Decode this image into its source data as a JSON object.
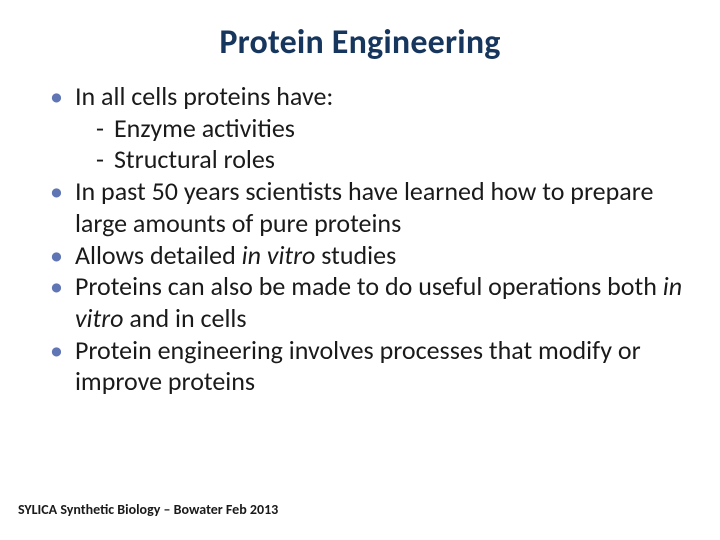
{
  "title": "Protein Engineering",
  "title_color": "#17365d",
  "title_fontsize": 34,
  "bullet_color": "#6076b4",
  "body_fontsize": 26,
  "body_color": "#1a1a1a",
  "background_color": "#ffffff",
  "bullets": [
    {
      "text": "In all cells proteins have:",
      "subs": [
        "Enzyme activities",
        "Structural roles"
      ]
    },
    {
      "text": "In past 50 years scientists have learned how to prepare large amounts of pure proteins",
      "subs": []
    },
    {
      "text_parts": [
        "Allows detailed ",
        {
          "italic": "in vitro"
        },
        " studies"
      ],
      "subs": []
    },
    {
      "text_parts": [
        "Proteins can also be made to do useful operations both ",
        {
          "italic": "in vitro"
        },
        " and in cells"
      ],
      "subs": []
    },
    {
      "text": "Protein engineering involves processes that modify or improve proteins",
      "subs": []
    }
  ],
  "footer": "SYLICA Synthetic Biology – Bowater Feb 2013",
  "footer_fontsize": 14
}
